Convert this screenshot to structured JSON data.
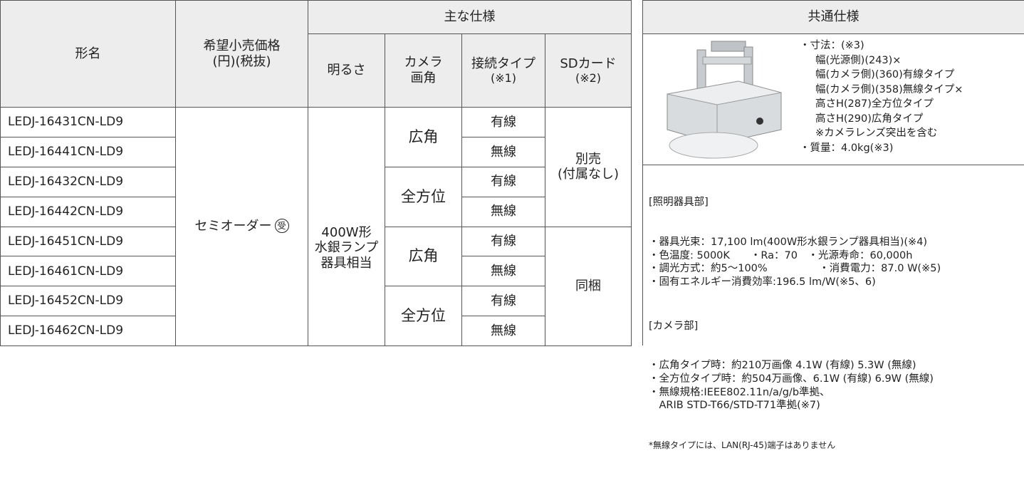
{
  "main_table": {
    "headers": {
      "model": "形名",
      "price": [
        "希望小売価格",
        "(円)(税抜)"
      ],
      "group": "主な仕様",
      "brightness": "明るさ",
      "camera_angle": [
        "カメラ",
        "画角"
      ],
      "connection": [
        "接続タイプ",
        "(※1)"
      ],
      "sd_card": [
        "SDカード",
        "(※2)"
      ]
    },
    "models": [
      "LEDJ-16431CN-LD9",
      "LEDJ-16441CN-LD9",
      "LEDJ-16432CN-LD9",
      "LEDJ-16442CN-LD9",
      "LEDJ-16451CN-LD9",
      "LEDJ-16461CN-LD9",
      "LEDJ-16452CN-LD9",
      "LEDJ-16462CN-LD9"
    ],
    "price": {
      "text": "セミオーダー",
      "mark": "受"
    },
    "brightness": [
      "400W形",
      "水銀ランプ",
      "器具相当"
    ],
    "angles": [
      "広角",
      "全方位",
      "広角",
      "全方位"
    ],
    "connections": [
      "有線",
      "無線",
      "有線",
      "無線",
      "有線",
      "無線",
      "有線",
      "無線"
    ],
    "sd_card": [
      [
        "別売",
        "(付属なし)"
      ],
      [
        "同梱"
      ]
    ]
  },
  "common_spec": {
    "title": "共通仕様",
    "dimensions": [
      "・寸法：(※3)",
      "幅(光源側)(243)×",
      "幅(カメラ側)(360)有線タイプ",
      "幅(カメラ側)(358)無線タイプ×",
      "高さH(287)全方位タイプ",
      "高さH(290)広角タイプ",
      "※カメラレンズ突出を含む",
      "・質量：4.0kg(※3)"
    ],
    "lighting": {
      "heading": "[照明器具部]",
      "lines": [
        "・器具光束：17,100 lm(400W形水銀ランプ器具相当)(※4)",
        "・色温度: 5000K　　・Ra：70　・光源寿命：60,000h",
        "・調光方式：約5～100%　　　　　・消費電力：87.0 W(※5)",
        "・固有エネルギー消費効率:196.5 lm/W(※5、6)"
      ]
    },
    "camera": {
      "heading": "[カメラ部]",
      "lines": [
        "・広角タイプ時：約210万画像 4.1W (有線) 5.3W (無線)",
        "・全方位タイプ時：約504万画像、6.1W (有線) 6.9W (無線)",
        "・無線規格:IEEE802.11n/a/g/b準拠、",
        "　ARIB STD-T66/STD-T71準拠(※7)"
      ]
    },
    "note": "*無線タイプには、LAN(RJ-45)端子はありません"
  }
}
